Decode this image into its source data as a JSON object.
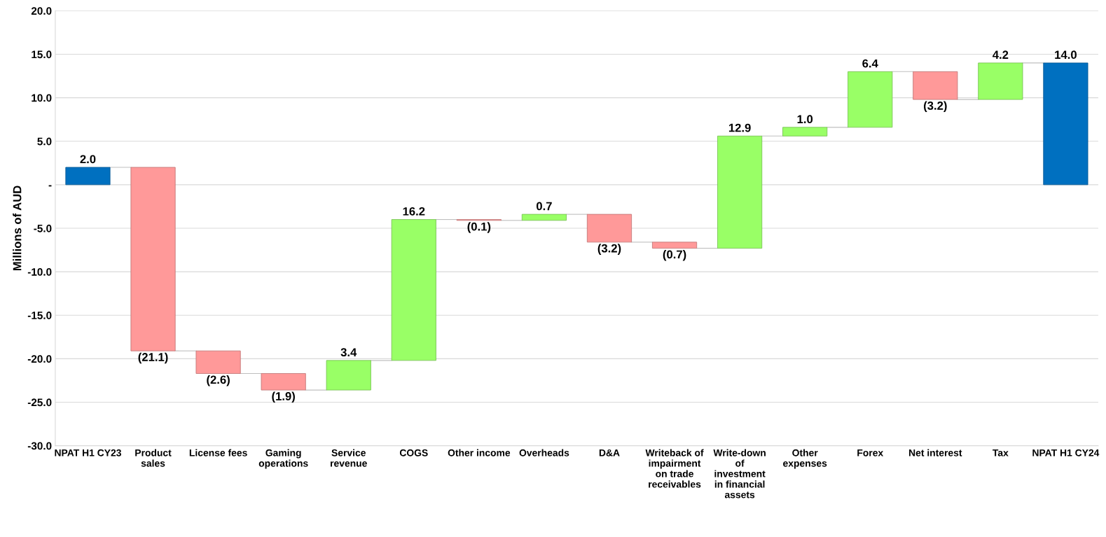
{
  "chart_data": {
    "type": "bar",
    "ylabel": "Millions of AUD",
    "categories": [
      "NPAT H1 CY23",
      "Product sales",
      "License fees",
      "Gaming operations",
      "Service revenue",
      "COGS",
      "Other income",
      "Overheads",
      "D&A",
      "Writeback of impairment on trade receivables",
      "Write-down of investment in financial assets",
      "Other expenses",
      "Forex",
      "Net interest",
      "Tax",
      "NPAT H1 CY24"
    ],
    "values": [
      2.0,
      -21.1,
      -2.6,
      -1.9,
      3.4,
      16.2,
      -0.1,
      0.7,
      -3.2,
      -0.7,
      12.9,
      1.0,
      6.4,
      -3.2,
      4.2,
      14.0
    ],
    "base": [
      0,
      2.0,
      -19.1,
      -21.7,
      -23.6,
      -20.2,
      -4.0,
      -4.1,
      -3.4,
      -6.6,
      -7.3,
      5.6,
      6.6,
      13.0,
      9.8,
      0
    ],
    "colors": [
      "#0070c0",
      "#ff9999",
      "#ff9999",
      "#ff9999",
      "#99ff66",
      "#99ff66",
      "#ff9999",
      "#99ff66",
      "#ff9999",
      "#ff9999",
      "#99ff66",
      "#99ff66",
      "#99ff66",
      "#ff9999",
      "#99ff66",
      "#0070c0"
    ],
    "value_labels": [
      "2.0",
      "(21.1)",
      "(2.6)",
      "(1.9)",
      "3.4",
      "16.2",
      "(0.1)",
      "0.7",
      "(3.2)",
      "(0.7)",
      "12.9",
      "1.0",
      "6.4",
      "(3.2)",
      "4.2",
      "14.0"
    ],
    "ylim": [
      -30,
      20
    ],
    "yticks": [
      {
        "value": -30,
        "label": "-30.0"
      },
      {
        "value": -25,
        "label": "-25.0"
      },
      {
        "value": -20,
        "label": "-20.0"
      },
      {
        "value": -15,
        "label": "-15.0"
      },
      {
        "value": -10,
        "label": "-10.0"
      },
      {
        "value": -5,
        "label": "-5.0"
      },
      {
        "value": 0,
        "label": "-"
      },
      {
        "value": 5,
        "label": "5.0"
      },
      {
        "value": 10,
        "label": "10.0"
      },
      {
        "value": 15,
        "label": "15.0"
      },
      {
        "value": 20,
        "label": "20.0"
      }
    ],
    "grid": "y",
    "legend": false
  }
}
